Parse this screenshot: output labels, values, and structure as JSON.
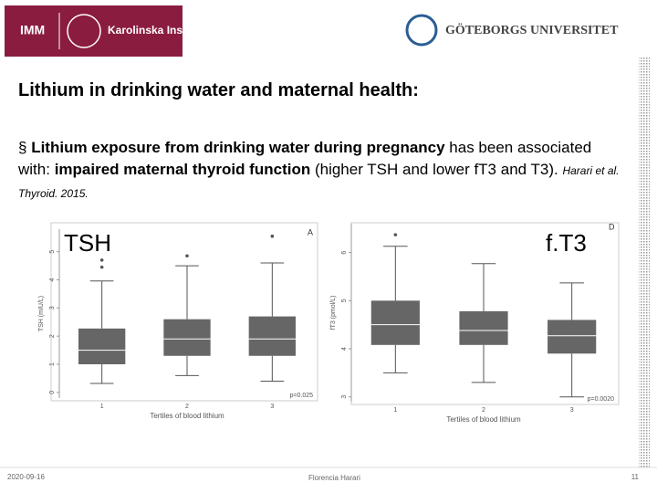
{
  "header": {
    "left_logo": "IMM",
    "left_logo_name": "Karolinska Institutet",
    "right_logo": "GÖTEBORGS UNIVERSITET"
  },
  "title": "Lithium in drinking water and maternal health:",
  "bullet": [
    {
      "text": "Lithium exposure from drinking water during pregnancy",
      "style": "bold"
    },
    {
      "text": " has been associated with: ",
      "style": "normal"
    },
    {
      "text": "impaired maternal thyroid function",
      "style": "bold"
    },
    {
      "text": " (higher TSH and lower fT3 and T3). ",
      "style": "normal"
    },
    {
      "text": "Harari et al. Thyroid. 2015.",
      "style": "citation"
    }
  ],
  "chart_data": [
    {
      "type": "box",
      "overlay_label": "TSH",
      "panel": "A",
      "ylabel": "TSH (mIU/L)",
      "xlabel": "Tertiles of blood lithium",
      "p_value": "p=0.025",
      "categories": [
        "1",
        "2",
        "3"
      ],
      "color": "#666666",
      "boxes": [
        {
          "min": 0.32,
          "q1": 1.0,
          "median": 1.5,
          "q3": 2.27,
          "max": 3.96,
          "outliers": [
            4.45,
            4.7
          ]
        },
        {
          "min": 0.6,
          "q1": 1.3,
          "median": 1.9,
          "q3": 2.6,
          "max": 4.5,
          "outliers": [
            4.85
          ]
        },
        {
          "min": 0.4,
          "q1": 1.3,
          "median": 1.9,
          "q3": 2.7,
          "max": 4.6,
          "outliers": [
            5.55
          ]
        }
      ],
      "ylim": [
        -0.2,
        5.8
      ],
      "yticks": [
        0,
        1,
        2,
        3,
        4,
        5
      ]
    },
    {
      "type": "box",
      "overlay_label": "f.T3",
      "panel": "D",
      "ylabel": "fT3 (pmol/L)",
      "xlabel": "Tertiles of blood lithium",
      "p_value": "p=0.0020",
      "categories": [
        "1",
        "2",
        "3"
      ],
      "color": "#666666",
      "boxes": [
        {
          "min": 3.5,
          "q1": 4.08,
          "median": 4.5,
          "q3": 5.0,
          "max": 6.13,
          "outliers": [
            6.37
          ]
        },
        {
          "min": 3.3,
          "q1": 4.08,
          "median": 4.38,
          "q3": 4.78,
          "max": 5.77,
          "outliers": []
        },
        {
          "min": 3.0,
          "q1": 3.9,
          "median": 4.27,
          "q3": 4.6,
          "max": 5.37,
          "outliers": []
        }
      ],
      "ylim": [
        2.9,
        6.6
      ],
      "yticks": [
        3,
        4,
        5,
        6
      ]
    }
  ],
  "footer": {
    "date": "2020-09-16",
    "author": "Florencia Harari",
    "page": "11"
  }
}
